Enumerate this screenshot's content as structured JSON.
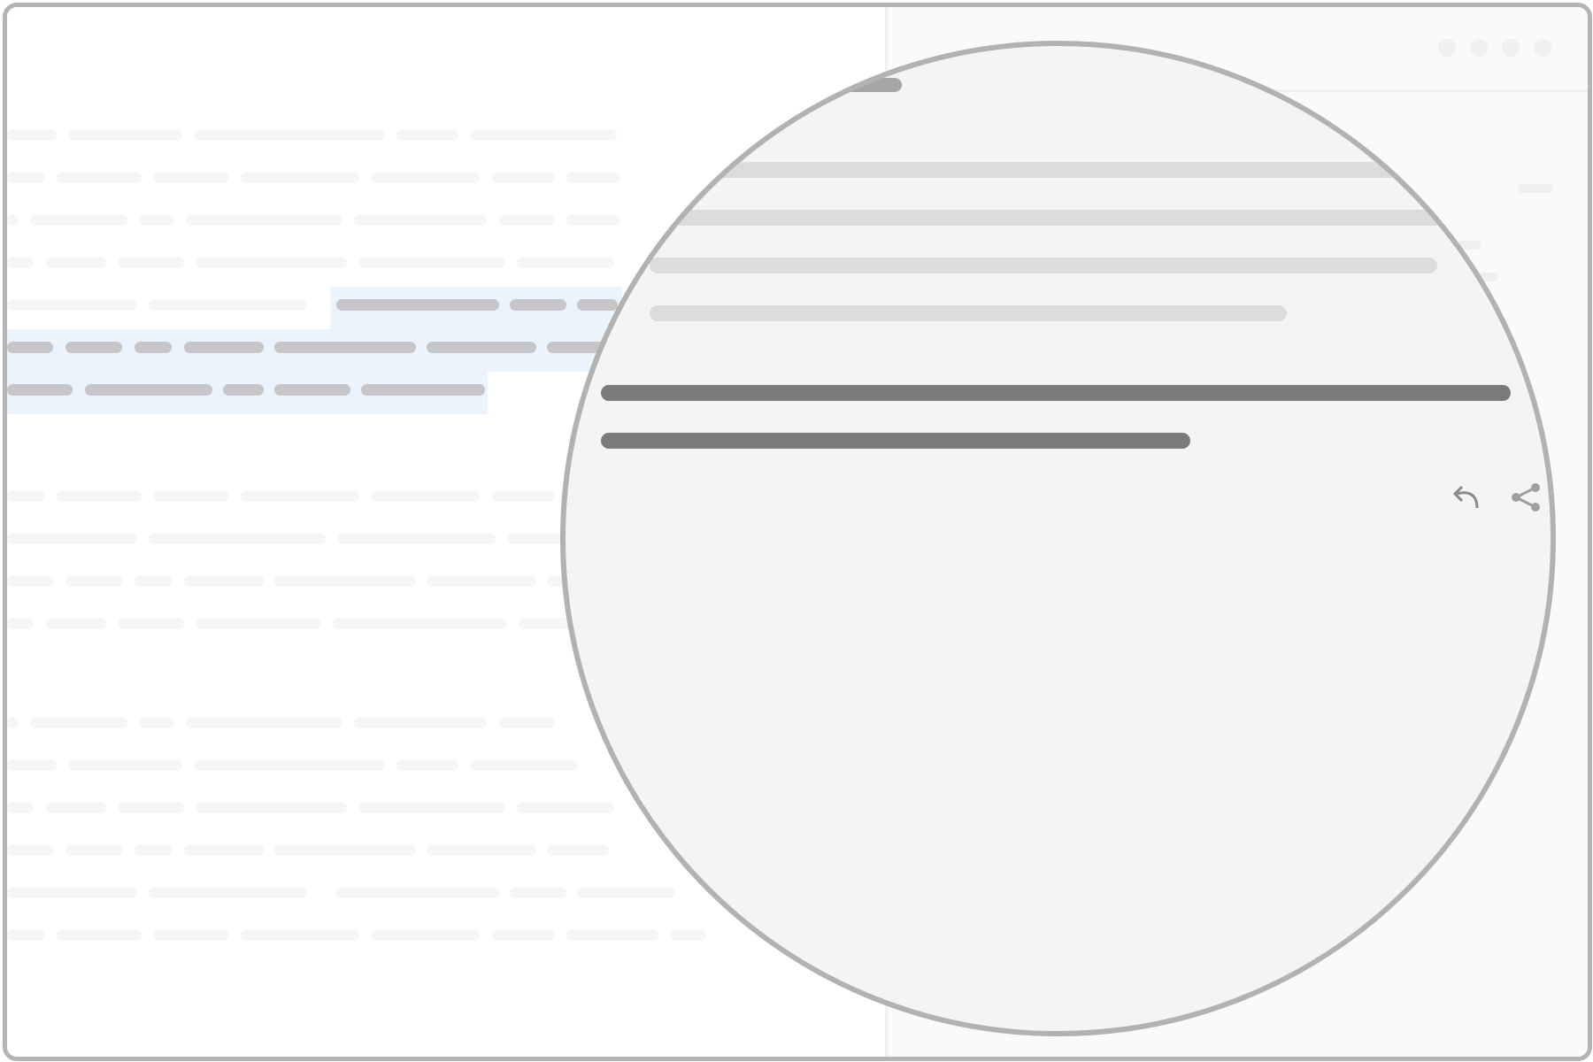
{
  "page": {
    "theme": {
      "frame_border": "#b4b4b4",
      "highlight": "#ebf3fd",
      "text_placeholder_faint": "#f6f6f6",
      "text_placeholder_selected": "#c6c6c8",
      "magnifier_background": "#f4f4f4",
      "magnifier_border": "#b2b2b2",
      "magnified_text_light": "#dcdcdc",
      "magnified_text_dark": "#7b7b7b"
    },
    "side_panel": {
      "header_controls": [
        "window-control-icon",
        "window-control-icon",
        "window-control-icon",
        "window-control-icon"
      ]
    },
    "magnifier": {
      "actions": [
        {
          "icon": "reply-icon"
        },
        {
          "icon": "share-icon"
        }
      ]
    }
  }
}
